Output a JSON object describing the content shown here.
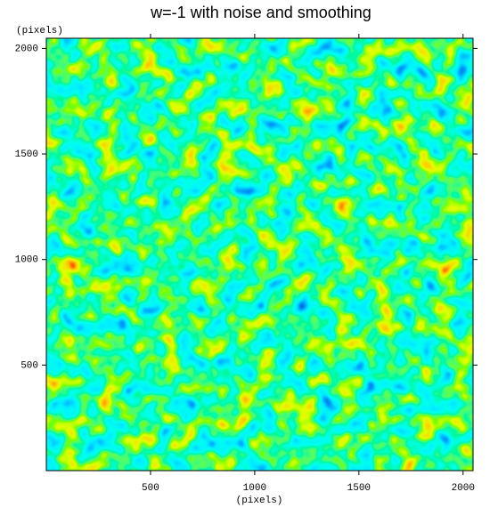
{
  "chart_data": {
    "type": "heatmap",
    "title": "w=-1 with noise and smoothing",
    "x_label": "(pixels)",
    "y_label": "(pixels)",
    "xlim": [
      0,
      2048
    ],
    "ylim": [
      0,
      2048
    ],
    "xticks": [
      500,
      1000,
      1500,
      2000
    ],
    "yticks": [
      500,
      1000,
      1500,
      2000
    ]
  }
}
